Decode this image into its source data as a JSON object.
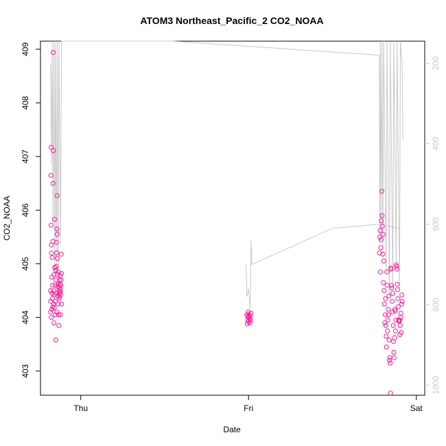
{
  "chart_data": {
    "type": "scatter",
    "title": "ATOM3 Northeast_Pacific_2 CO2_NOAA",
    "xlabel": "Date",
    "ylabel": "CO2_NOAA",
    "x_ticks": [
      "Thu",
      "Fri",
      "Sat"
    ],
    "y_ticks": [
      "403",
      "404",
      "405",
      "406",
      "407",
      "408",
      "409"
    ],
    "y2_ticks": [
      "200",
      "400",
      "600",
      "800",
      "1000"
    ],
    "ylim": [
      402.55,
      409.15
    ],
    "y2lim": [
      1025,
      145
    ],
    "grid": false,
    "colors": {
      "points": "#ff1493",
      "secondary_line": "#c8c8c8",
      "right_axis": "#c8c8c8"
    },
    "series": [
      {
        "type": "scatter",
        "points": [
          [
            -0.18,
            404.1
          ],
          [
            -0.18,
            404.3
          ],
          [
            -0.18,
            404.5
          ],
          [
            -0.178,
            406.65
          ],
          [
            -0.177,
            407.17
          ],
          [
            -0.177,
            405.72
          ],
          [
            -0.176,
            404.0
          ],
          [
            -0.175,
            405.35
          ],
          [
            -0.174,
            405.2
          ],
          [
            -0.173,
            404.75
          ],
          [
            -0.172,
            404.15
          ],
          [
            -0.171,
            404.45
          ],
          [
            -0.17,
            405.12
          ],
          [
            -0.169,
            404.35
          ],
          [
            -0.168,
            404.6
          ],
          [
            -0.167,
            404.2
          ],
          [
            -0.166,
            405.42
          ],
          [
            -0.165,
            406.5
          ],
          [
            -0.164,
            408.94
          ],
          [
            -0.163,
            407.11
          ],
          [
            -0.162,
            404.25
          ],
          [
            -0.161,
            404.5
          ],
          [
            -0.16,
            403.9
          ],
          [
            -0.159,
            404.8
          ],
          [
            -0.158,
            404.18
          ],
          [
            -0.157,
            404.42
          ],
          [
            -0.156,
            405.83
          ],
          [
            -0.155,
            404.93
          ],
          [
            -0.154,
            404.93
          ],
          [
            -0.153,
            404.6
          ],
          [
            -0.152,
            404.3
          ],
          [
            -0.151,
            404.05
          ],
          [
            -0.15,
            404.88
          ],
          [
            -0.149,
            403.58
          ],
          [
            -0.148,
            404.7
          ],
          [
            -0.147,
            404.45
          ],
          [
            -0.146,
            404.95
          ],
          [
            -0.145,
            405.4
          ],
          [
            -0.144,
            405.2
          ],
          [
            -0.143,
            404.1
          ],
          [
            -0.142,
            405.65
          ],
          [
            -0.141,
            406.27
          ],
          [
            -0.14,
            405.55
          ],
          [
            -0.139,
            405.1
          ],
          [
            -0.138,
            404.8
          ],
          [
            -0.137,
            404.58
          ],
          [
            -0.136,
            404.4
          ],
          [
            -0.135,
            404.25
          ],
          [
            -0.134,
            404.62
          ],
          [
            -0.133,
            404.85
          ],
          [
            -0.132,
            404.05
          ],
          [
            -0.131,
            403.85
          ],
          [
            -0.13,
            404.5
          ],
          [
            -0.129,
            404.35
          ],
          [
            -0.128,
            404.45
          ],
          [
            -0.127,
            404.55
          ],
          [
            -0.126,
            404.7
          ],
          [
            -0.125,
            404.38
          ],
          [
            -0.124,
            404.62
          ],
          [
            -0.123,
            404.48
          ],
          [
            -0.122,
            404.78
          ],
          [
            -0.121,
            404.52
          ],
          [
            -0.12,
            404.05
          ],
          [
            -0.119,
            404.6
          ],
          [
            -0.118,
            404.43
          ],
          [
            -0.117,
            404.7
          ],
          [
            -0.116,
            405.18
          ],
          [
            -0.115,
            404.82
          ],
          [
            -0.114,
            404.25
          ],
          [
            0.99,
            404.05
          ],
          [
            0.992,
            403.88
          ],
          [
            0.994,
            404.02
          ],
          [
            0.996,
            403.95
          ],
          [
            0.998,
            404.1
          ],
          [
            1.0,
            403.92
          ],
          [
            1.002,
            404.0
          ],
          [
            1.004,
            404.05
          ],
          [
            1.006,
            403.98
          ],
          [
            1.008,
            403.9
          ],
          [
            1.01,
            404.03
          ],
          [
            1.012,
            403.95
          ],
          [
            1.014,
            404.08
          ],
          [
            1.78,
            405.2
          ],
          [
            1.782,
            405.5
          ],
          [
            1.784,
            405.62
          ],
          [
            1.786,
            404.85
          ],
          [
            1.788,
            405.3
          ],
          [
            1.79,
            405.45
          ],
          [
            1.792,
            405.8
          ],
          [
            1.794,
            406.35
          ],
          [
            1.796,
            405.9
          ],
          [
            1.798,
            405.7
          ],
          [
            1.8,
            405.18
          ],
          [
            1.802,
            405.55
          ],
          [
            1.804,
            404.65
          ],
          [
            1.806,
            405.05
          ],
          [
            1.808,
            404.5
          ],
          [
            1.81,
            404.25
          ],
          [
            1.812,
            403.9
          ],
          [
            1.814,
            404.05
          ],
          [
            1.816,
            404.35
          ],
          [
            1.818,
            403.85
          ],
          [
            1.82,
            403.65
          ],
          [
            1.822,
            403.45
          ],
          [
            1.824,
            404.85
          ],
          [
            1.826,
            404.6
          ],
          [
            1.828,
            403.75
          ],
          [
            1.83,
            403.95
          ],
          [
            1.832,
            404.15
          ],
          [
            1.834,
            404.05
          ],
          [
            1.836,
            404.4
          ],
          [
            1.838,
            403.58
          ],
          [
            1.84,
            403.2
          ],
          [
            1.842,
            403.25
          ],
          [
            1.844,
            403.15
          ],
          [
            1.846,
            402.59
          ],
          [
            1.848,
            404.92
          ],
          [
            1.85,
            404.9
          ],
          [
            1.852,
            404.6
          ],
          [
            1.854,
            404.55
          ],
          [
            1.856,
            404.3
          ],
          [
            1.858,
            404.1
          ],
          [
            1.86,
            404.45
          ],
          [
            1.862,
            403.85
          ],
          [
            1.864,
            403.55
          ],
          [
            1.866,
            403.35
          ],
          [
            1.868,
            403.25
          ],
          [
            1.87,
            403.62
          ],
          [
            1.872,
            404.15
          ],
          [
            1.874,
            404.12
          ],
          [
            1.876,
            403.75
          ],
          [
            1.878,
            403.95
          ],
          [
            1.88,
            404.98
          ],
          [
            1.882,
            404.95
          ],
          [
            1.884,
            404.9
          ],
          [
            1.886,
            404.62
          ],
          [
            1.888,
            404.52
          ],
          [
            1.89,
            404.35
          ],
          [
            1.892,
            404.2
          ],
          [
            1.894,
            403.95
          ],
          [
            1.896,
            403.95
          ],
          [
            1.898,
            403.93
          ],
          [
            1.9,
            403.95
          ],
          [
            1.902,
            403.68
          ],
          [
            1.904,
            403.85
          ],
          [
            1.906,
            404.0
          ],
          [
            1.908,
            404.08
          ],
          [
            1.91,
            403.72
          ],
          [
            1.912,
            404.25
          ],
          [
            1.914,
            404.42
          ],
          [
            1.916,
            404.3
          ]
        ]
      },
      {
        "type": "line",
        "axis": "right",
        "points": [
          [
            -0.18,
            200
          ],
          [
            -0.175,
            450
          ],
          [
            -0.17,
            145
          ],
          [
            -0.165,
            600
          ],
          [
            -0.16,
            145
          ],
          [
            -0.155,
            720
          ],
          [
            -0.15,
            145
          ],
          [
            -0.145,
            700
          ],
          [
            -0.14,
            145
          ],
          [
            -0.135,
            780
          ],
          [
            -0.13,
            145
          ],
          [
            -0.12,
            650
          ],
          [
            -0.115,
            145
          ],
          [
            -0.01,
            145
          ],
          [
            0.55,
            145
          ],
          [
            1.78,
            180
          ],
          [
            1.782,
            650
          ],
          [
            1.785,
            145
          ],
          [
            1.79,
            600
          ],
          [
            1.795,
            145
          ],
          [
            1.8,
            680
          ],
          [
            1.805,
            145
          ],
          [
            1.82,
            720
          ],
          [
            1.825,
            145
          ],
          [
            1.84,
            780
          ],
          [
            1.845,
            145
          ],
          [
            1.86,
            760
          ],
          [
            1.865,
            145
          ],
          [
            1.88,
            700
          ],
          [
            1.885,
            145
          ],
          [
            1.9,
            760
          ],
          [
            1.905,
            145
          ],
          [
            1.915,
            200
          ],
          [
            1.92,
            390
          ]
        ]
      },
      {
        "type": "line",
        "axis": "right",
        "points": [
          [
            0.985,
            700
          ],
          [
            0.99,
            780
          ],
          [
            1.0,
            760
          ],
          [
            1.01,
            810
          ],
          [
            1.015,
            640
          ],
          [
            1.02,
            700
          ],
          [
            1.5,
            610
          ],
          [
            1.78,
            600
          ],
          [
            1.9,
            610
          ]
        ]
      }
    ]
  }
}
